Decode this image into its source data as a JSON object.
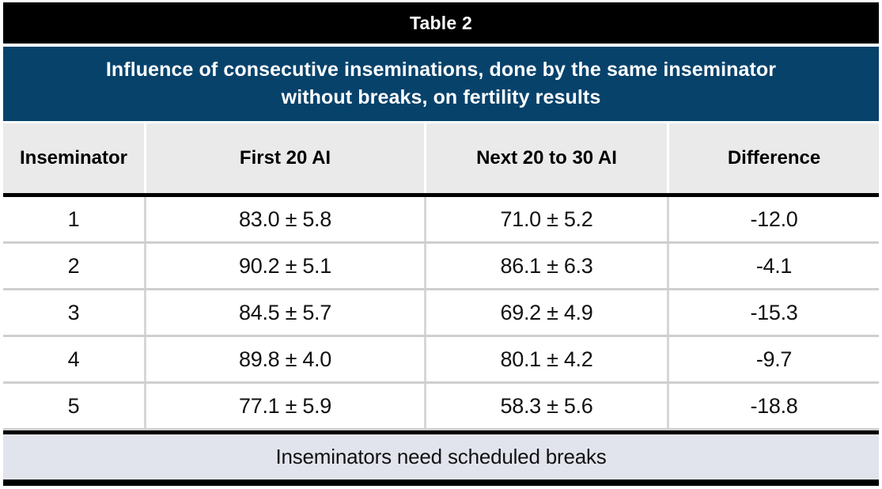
{
  "chart_data": {
    "type": "table",
    "title": "Table 2",
    "subtitle": "Influence of consecutive inseminations, done by the same inseminator without breaks, on fertility results",
    "subtitle_lines": [
      "Influence of consecutive inseminations, done by the same inseminator",
      "without breaks, on fertility results"
    ],
    "columns": [
      "Inseminator",
      "First 20 AI",
      "Next 20 to 30 AI",
      "Difference"
    ],
    "rows": [
      [
        "1",
        "83.0 ± 5.8",
        "71.0 ± 5.2",
        "-12.0"
      ],
      [
        "2",
        "90.2 ± 5.1",
        "86.1 ± 6.3",
        "-4.1"
      ],
      [
        "3",
        "84.5 ± 5.7",
        "69.2 ± 4.9",
        "-15.3"
      ],
      [
        "4",
        "89.8 ± 4.0",
        "80.1 ± 4.2",
        "-9.7"
      ],
      [
        "5",
        "77.1 ± 5.9",
        "58.3 ± 5.6",
        "-18.8"
      ]
    ],
    "footer_note": "Inseminators need scheduled breaks"
  },
  "colors": {
    "title_bg": "#000000",
    "subtitle_bg": "#07426b",
    "header_bg": "#eaeaea",
    "footer_bg": "#e2e4ed",
    "divider": "#d6d6d6",
    "row_divider": "#cfcfcf"
  }
}
